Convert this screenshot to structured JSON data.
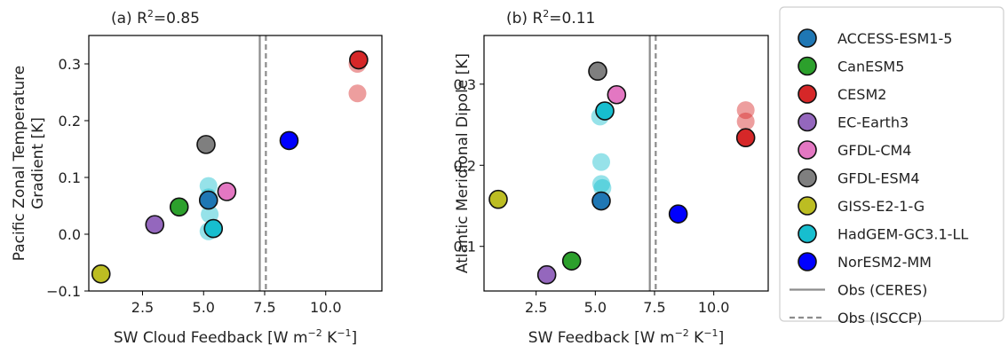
{
  "colors": {
    "ACCESS-ESM1-5": "#1f77b4",
    "CanESM5": "#2ca02c",
    "CESM2": "#d62728",
    "EC-Earth3": "#9467bd",
    "GFDL-CM4": "#e377c2",
    "GFDL-ESM4": "#7f7f7f",
    "GISS-E2-1-G": "#bcbd22",
    "HadGEM-GC3.1-LL": "#17becf",
    "NorESM2-MM": "#0000ff",
    "obs_line": "#8c8c8c"
  },
  "legend": {
    "placement": "right",
    "entries": [
      {
        "label": "ACCESS-ESM1-5",
        "kind": "marker",
        "model": "ACCESS-ESM1-5"
      },
      {
        "label": "CanESM5",
        "kind": "marker",
        "model": "CanESM5"
      },
      {
        "label": "CESM2",
        "kind": "marker",
        "model": "CESM2"
      },
      {
        "label": "EC-Earth3",
        "kind": "marker",
        "model": "EC-Earth3"
      },
      {
        "label": "GFDL-CM4",
        "kind": "marker",
        "model": "GFDL-CM4"
      },
      {
        "label": "GFDL-ESM4",
        "kind": "marker",
        "model": "GFDL-ESM4"
      },
      {
        "label": "GISS-E2-1-G",
        "kind": "marker",
        "model": "GISS-E2-1-G"
      },
      {
        "label": "HadGEM-GC3.1-LL",
        "kind": "marker",
        "model": "HadGEM-GC3.1-LL"
      },
      {
        "label": "NorESM2-MM",
        "kind": "marker",
        "model": "NorESM2-MM"
      },
      {
        "label": "Obs (CERES)",
        "kind": "solid"
      },
      {
        "label": "Obs (ISCCP)",
        "kind": "dashed"
      }
    ]
  },
  "chart_data": [
    {
      "type": "scatter",
      "panel": "(a)",
      "title_prefix": "(a) R",
      "title_sup": "2",
      "title_suffix": "=0.85",
      "xlabel": "SW Cloud Feedback [W m",
      "xlabel_sup1": "−2",
      "xlabel_mid": " K",
      "xlabel_sup2": "−1",
      "xlabel_end": "]",
      "ylabel_lines": [
        "Pacific Zonal Temperature",
        "Gradient [K]"
      ],
      "xlim": [
        0.3,
        12.3
      ],
      "ylim": [
        -0.1,
        0.35
      ],
      "xticks": [
        2.5,
        5.0,
        7.5,
        10.0
      ],
      "xtick_labels": [
        "2.5",
        "5.0",
        "7.5",
        "10.0"
      ],
      "yticks": [
        -0.1,
        0.0,
        0.1,
        0.2,
        0.3
      ],
      "ytick_labels": [
        "−0.1",
        "0.0",
        "0.1",
        "0.2",
        "0.3"
      ],
      "obs_lines": [
        {
          "x": 7.3,
          "style": "solid"
        },
        {
          "x": 7.55,
          "style": "dashed"
        }
      ],
      "points": [
        {
          "model": "HadGEM-GC3.1-LL",
          "x": 5.2,
          "y": 0.085,
          "faded": true
        },
        {
          "model": "HadGEM-GC3.1-LL",
          "x": 5.2,
          "y": 0.065,
          "faded": true
        },
        {
          "model": "HadGEM-GC3.1-LL",
          "x": 5.25,
          "y": 0.035,
          "faded": true
        },
        {
          "model": "HadGEM-GC3.1-LL",
          "x": 5.2,
          "y": 0.005,
          "faded": true
        },
        {
          "model": "CESM2",
          "x": 11.3,
          "y": 0.3,
          "faded": true
        },
        {
          "model": "CESM2",
          "x": 11.3,
          "y": 0.248,
          "faded": true
        },
        {
          "model": "GISS-E2-1-G",
          "x": 0.8,
          "y": -0.07,
          "faded": false
        },
        {
          "model": "EC-Earth3",
          "x": 3.0,
          "y": 0.017,
          "faded": false
        },
        {
          "model": "CanESM5",
          "x": 4.0,
          "y": 0.048,
          "faded": false
        },
        {
          "model": "GFDL-ESM4",
          "x": 5.1,
          "y": 0.158,
          "faded": false
        },
        {
          "model": "ACCESS-ESM1-5",
          "x": 5.2,
          "y": 0.06,
          "faded": false
        },
        {
          "model": "HadGEM-GC3.1-LL",
          "x": 5.4,
          "y": 0.01,
          "faded": false
        },
        {
          "model": "GFDL-CM4",
          "x": 5.95,
          "y": 0.075,
          "faded": false
        },
        {
          "model": "NorESM2-MM",
          "x": 8.5,
          "y": 0.165,
          "faded": false
        },
        {
          "model": "CESM2",
          "x": 11.35,
          "y": 0.307,
          "faded": false
        }
      ]
    },
    {
      "type": "scatter",
      "panel": "(b)",
      "title_prefix": "(b) R",
      "title_sup": "2",
      "title_suffix": "=0.11",
      "xlabel": "SW Feedback [W m",
      "xlabel_sup1": "−2",
      "xlabel_mid": " K",
      "xlabel_sup2": "−1",
      "xlabel_end": "]",
      "ylabel_lines": [
        "Atlantic Meridional Dipole [K]"
      ],
      "xlim": [
        0.3,
        12.3
      ],
      "ylim": [
        0.045,
        0.36
      ],
      "xticks": [
        2.5,
        5.0,
        7.5,
        10.0
      ],
      "xtick_labels": [
        "2.5",
        "5.0",
        "7.5",
        "10.0"
      ],
      "yticks": [
        0.1,
        0.2,
        0.3
      ],
      "ytick_labels": [
        "0.1",
        "0.2",
        "0.3"
      ],
      "obs_lines": [
        {
          "x": 7.3,
          "style": "solid"
        },
        {
          "x": 7.55,
          "style": "dashed"
        }
      ],
      "points": [
        {
          "model": "HadGEM-GC3.1-LL",
          "x": 5.2,
          "y": 0.26,
          "faded": true
        },
        {
          "model": "HadGEM-GC3.1-LL",
          "x": 5.25,
          "y": 0.204,
          "faded": true
        },
        {
          "model": "HadGEM-GC3.1-LL",
          "x": 5.25,
          "y": 0.177,
          "faded": true
        },
        {
          "model": "HadGEM-GC3.1-LL",
          "x": 5.3,
          "y": 0.172,
          "faded": true
        },
        {
          "model": "CESM2",
          "x": 11.35,
          "y": 0.268,
          "faded": true
        },
        {
          "model": "CESM2",
          "x": 11.35,
          "y": 0.254,
          "faded": true
        },
        {
          "model": "GISS-E2-1-G",
          "x": 0.9,
          "y": 0.158,
          "faded": false
        },
        {
          "model": "EC-Earth3",
          "x": 2.95,
          "y": 0.065,
          "faded": false
        },
        {
          "model": "CanESM5",
          "x": 4.0,
          "y": 0.082,
          "faded": false
        },
        {
          "model": "GFDL-ESM4",
          "x": 5.1,
          "y": 0.316,
          "faded": false
        },
        {
          "model": "ACCESS-ESM1-5",
          "x": 5.25,
          "y": 0.156,
          "faded": false
        },
        {
          "model": "HadGEM-GC3.1-LL",
          "x": 5.4,
          "y": 0.267,
          "faded": false
        },
        {
          "model": "GFDL-CM4",
          "x": 5.9,
          "y": 0.287,
          "faded": false
        },
        {
          "model": "NorESM2-MM",
          "x": 8.5,
          "y": 0.14,
          "faded": false
        },
        {
          "model": "CESM2",
          "x": 11.35,
          "y": 0.234,
          "faded": false
        }
      ]
    }
  ]
}
